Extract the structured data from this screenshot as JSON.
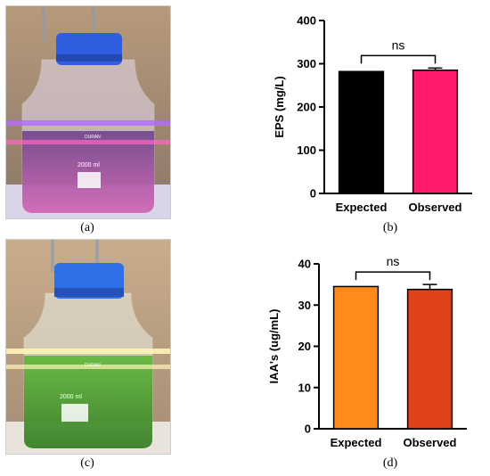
{
  "captions": {
    "a": "(a)",
    "b": "(b)",
    "c": "(c)",
    "d": "(d)"
  },
  "photos": {
    "top": {
      "bottle_label": "2000 ml",
      "brand": "DURAN",
      "liquid_color": "#c44aa8",
      "light_color": "#7a4dff"
    },
    "bottom": {
      "bottle_label": "2000 ml",
      "brand": "DURAN",
      "liquid_color": "#3e9a2a",
      "light_color": "#fff2b0"
    }
  },
  "chart_data": [
    {
      "type": "bar",
      "categories": [
        "Expected",
        "Observed"
      ],
      "values": [
        282,
        285
      ],
      "errors": [
        0,
        5
      ],
      "colors": [
        "#000000",
        "#ff1a6e"
      ],
      "ylabel": "EPS (mg/L)",
      "ylim": [
        0,
        400
      ],
      "yticks": [
        0,
        100,
        200,
        300,
        400
      ],
      "annotation": "ns"
    },
    {
      "type": "bar",
      "categories": [
        "Expected",
        "Observed"
      ],
      "values": [
        34.5,
        33.8
      ],
      "errors": [
        0,
        1.2
      ],
      "colors": [
        "#ff8c1a",
        "#e0431a"
      ],
      "ylabel": "IAA's (ug/mL)",
      "ylim": [
        0,
        40
      ],
      "yticks": [
        0,
        10,
        20,
        30,
        40
      ],
      "annotation": "ns"
    }
  ]
}
